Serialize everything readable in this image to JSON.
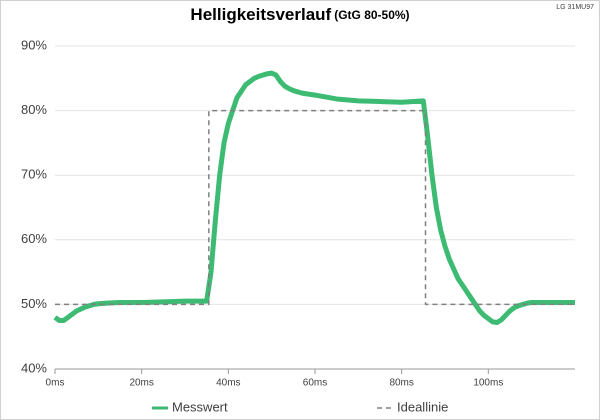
{
  "chart_data": {
    "type": "line",
    "title": "Helligkeitsverlauf",
    "subtitle": "(GtG 80-50%)",
    "corner_note": "LG 31MU97",
    "xlim": [
      0,
      120
    ],
    "xticks": [
      {
        "value": 0,
        "label": "0ms"
      },
      {
        "value": 20,
        "label": "20ms"
      },
      {
        "value": 40,
        "label": "40ms"
      },
      {
        "value": 60,
        "label": "60ms"
      },
      {
        "value": 80,
        "label": "80ms"
      },
      {
        "value": 100,
        "label": "100ms"
      }
    ],
    "ylim": [
      40,
      90
    ],
    "yticks": [
      {
        "value": 40,
        "label": "40%"
      },
      {
        "value": 50,
        "label": "50%"
      },
      {
        "value": 60,
        "label": "60%"
      },
      {
        "value": 70,
        "label": "70%"
      },
      {
        "value": 80,
        "label": "80%"
      },
      {
        "value": 90,
        "label": "90%"
      }
    ],
    "grid": true,
    "legend": "bottom",
    "series": [
      {
        "name": "Messwert",
        "color": "#3dbb73",
        "dash": false,
        "x": [
          0,
          1,
          2,
          3,
          4,
          5,
          6,
          7,
          8,
          9,
          10,
          12,
          15,
          20,
          25,
          30,
          35,
          36,
          37,
          38,
          39,
          40,
          41,
          42,
          43,
          44,
          45,
          46,
          47,
          48,
          49,
          50,
          51,
          52,
          53,
          54,
          55,
          57,
          60,
          65,
          70,
          75,
          80,
          85,
          86,
          87,
          88,
          89,
          90,
          91,
          92,
          93,
          94,
          95,
          96,
          97,
          98,
          99,
          100,
          101,
          102,
          103,
          104,
          105,
          106,
          107,
          108,
          109,
          110,
          115,
          120
        ],
        "values": [
          48,
          47.5,
          47.5,
          48,
          48.5,
          49,
          49.3,
          49.6,
          49.8,
          50,
          50.1,
          50.2,
          50.3,
          50.3,
          50.4,
          50.5,
          50.5,
          55,
          63,
          70,
          75,
          78,
          80,
          82,
          83,
          84,
          84.5,
          85,
          85.3,
          85.5,
          85.7,
          85.8,
          85.5,
          84.5,
          83.8,
          83.4,
          83.1,
          82.7,
          82.4,
          81.8,
          81.5,
          81.4,
          81.3,
          81.5,
          76,
          70,
          65,
          61.5,
          59,
          57,
          55.5,
          54,
          53,
          52,
          51,
          50,
          49,
          48.3,
          47.8,
          47.3,
          47.2,
          47.6,
          48.3,
          49,
          49.5,
          49.8,
          50,
          50.2,
          50.3,
          50.3,
          50.3
        ]
      },
      {
        "name": "Ideallinie",
        "color": "#808080",
        "dash": true,
        "x": [
          0,
          35.5,
          35.5,
          85.5,
          85.5,
          120
        ],
        "values": [
          50,
          50,
          80,
          80,
          50,
          50
        ]
      }
    ]
  }
}
